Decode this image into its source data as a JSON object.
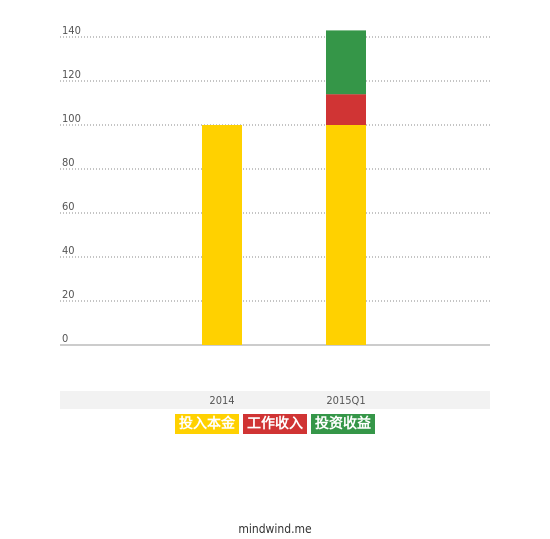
{
  "chart_data": {
    "type": "bar",
    "stacked": true,
    "categories": [
      "2014",
      "2015Q1"
    ],
    "series": [
      {
        "name": "投入本金",
        "color": "#FFD100",
        "values": [
          100,
          100
        ]
      },
      {
        "name": "工作收入",
        "color": "#D03434",
        "values": [
          0,
          14
        ]
      },
      {
        "name": "投资收益",
        "color": "#359648",
        "values": [
          0,
          29
        ]
      }
    ],
    "yticks": [
      0,
      20,
      40,
      60,
      80,
      100,
      120,
      140
    ],
    "ylim": [
      0,
      143
    ],
    "grid": true,
    "legend_position": "bottom"
  },
  "footer": {
    "text": "mindwind.me"
  }
}
